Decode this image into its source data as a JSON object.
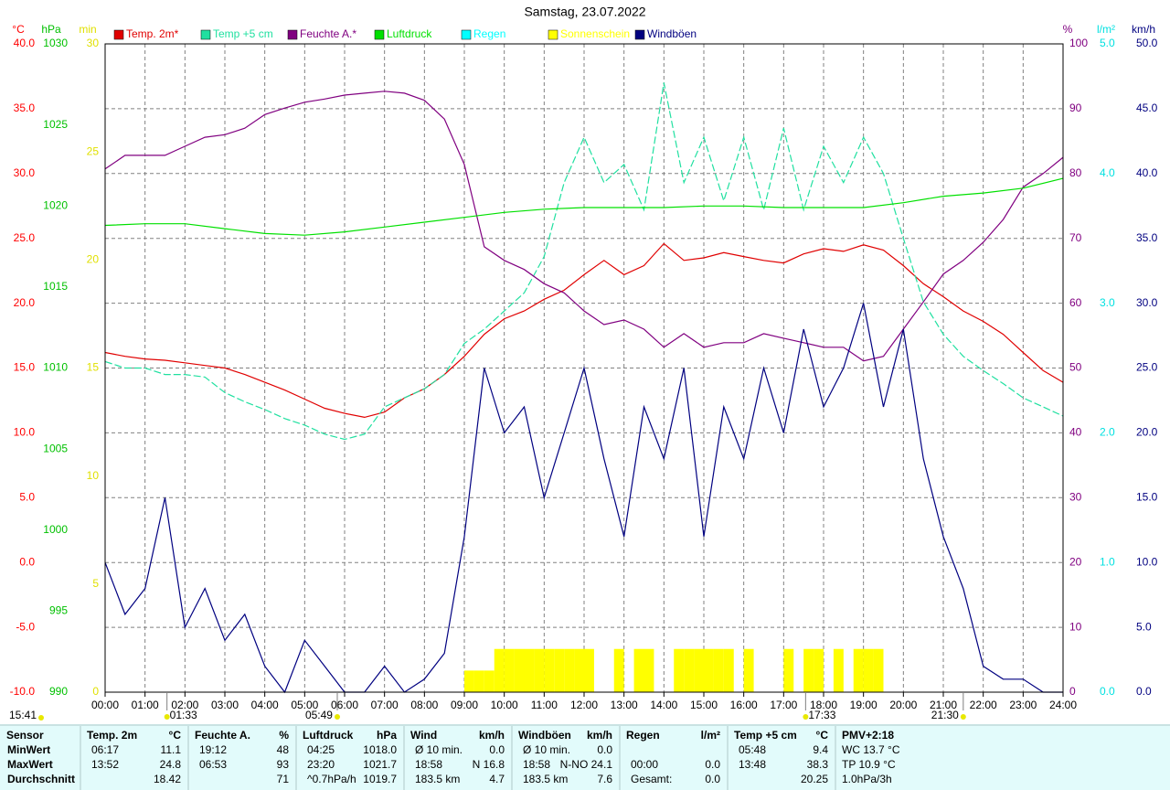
{
  "chart_data": {
    "type": "line",
    "title": "Samstag, 23.07.2022",
    "xlim": [
      0,
      24
    ],
    "xticks": [
      {
        "value": 0,
        "label": "00:00"
      },
      {
        "value": 1,
        "label": "01:00"
      },
      {
        "value": 2,
        "label": "02:00"
      },
      {
        "value": 3,
        "label": "03:00"
      },
      {
        "value": 4,
        "label": "04:00"
      },
      {
        "value": 5,
        "label": "05:00"
      },
      {
        "value": 6,
        "label": "06:00"
      },
      {
        "value": 7,
        "label": "07:00"
      },
      {
        "value": 8,
        "label": "08:00"
      },
      {
        "value": 9,
        "label": "09:00"
      },
      {
        "value": 10,
        "label": "10:00"
      },
      {
        "value": 11,
        "label": "11:00"
      },
      {
        "value": 12,
        "label": "12:00"
      },
      {
        "value": 13,
        "label": "13:00"
      },
      {
        "value": 14,
        "label": "14:00"
      },
      {
        "value": 15,
        "label": "15:00"
      },
      {
        "value": 16,
        "label": "16:00"
      },
      {
        "value": 17,
        "label": "17:00"
      },
      {
        "value": 18,
        "label": "18:00"
      },
      {
        "value": 19,
        "label": "19:00"
      },
      {
        "value": 20,
        "label": "20:00"
      },
      {
        "value": 21,
        "label": "21:00"
      },
      {
        "value": 22,
        "label": "22:00"
      },
      {
        "value": 23,
        "label": "23:00"
      },
      {
        "value": 24,
        "label": "24:00"
      }
    ],
    "grid": true,
    "axes": {
      "temp": {
        "unit": "°C",
        "color": "#ff0000",
        "lim": [
          -10,
          40
        ],
        "ticks": [
          {
            "value": -10,
            "label": "-10.0"
          },
          {
            "value": -5,
            "label": "-5.0"
          },
          {
            "value": 0,
            "label": "0.0"
          },
          {
            "value": 5,
            "label": "5.0"
          },
          {
            "value": 10,
            "label": "10.0"
          },
          {
            "value": 15,
            "label": "15.0"
          },
          {
            "value": 20,
            "label": "20.0"
          },
          {
            "value": 25,
            "label": "25.0"
          },
          {
            "value": 30,
            "label": "30.0"
          },
          {
            "value": 35,
            "label": "35.0"
          },
          {
            "value": 40,
            "label": "40.0"
          }
        ]
      },
      "hpa": {
        "unit": "hPa",
        "color": "#00c000",
        "lim": [
          990,
          1030
        ],
        "ticks": [
          990,
          995,
          1000,
          1005,
          1010,
          1015,
          1020,
          1025,
          1030
        ]
      },
      "min": {
        "unit": "min",
        "color": "#e0e000",
        "lim": [
          0,
          30
        ],
        "ticks": [
          0,
          5,
          10,
          15,
          20,
          25,
          30
        ]
      },
      "pct": {
        "unit": "%",
        "color": "#800080",
        "lim": [
          0,
          100
        ],
        "ticks": [
          0,
          10,
          20,
          30,
          40,
          50,
          60,
          70,
          80,
          90,
          100
        ]
      },
      "rain": {
        "unit": "l/m²",
        "color": "#00e0e0",
        "lim": [
          0,
          5
        ],
        "ticks": [
          {
            "value": 0,
            "label": "0.0"
          },
          {
            "value": 1,
            "label": "1.0"
          },
          {
            "value": 2,
            "label": "2.0"
          },
          {
            "value": 3,
            "label": "3.0"
          },
          {
            "value": 4,
            "label": "4.0"
          },
          {
            "value": 5,
            "label": "5.0"
          }
        ]
      },
      "kmh": {
        "unit": "km/h",
        "color": "#000080",
        "lim": [
          0,
          50
        ],
        "ticks": [
          {
            "value": 0,
            "label": "0.0"
          },
          {
            "value": 5,
            "label": "5.0"
          },
          {
            "value": 10,
            "label": "10.0"
          },
          {
            "value": 15,
            "label": "15.0"
          },
          {
            "value": 20,
            "label": "20.0"
          },
          {
            "value": 25,
            "label": "25.0"
          },
          {
            "value": 30,
            "label": "30.0"
          },
          {
            "value": 35,
            "label": "35.0"
          },
          {
            "value": 40,
            "label": "40.0"
          },
          {
            "value": 45,
            "label": "45.0"
          },
          {
            "value": 50,
            "label": "50.0"
          }
        ]
      }
    },
    "x": [
      0,
      0.5,
      1,
      1.5,
      2,
      2.5,
      3,
      3.5,
      4,
      4.5,
      5,
      5.5,
      6,
      6.5,
      7,
      7.5,
      8,
      8.5,
      9,
      9.5,
      10,
      10.5,
      11,
      11.5,
      12,
      12.5,
      13,
      13.5,
      14,
      14.5,
      15,
      15.5,
      16,
      16.5,
      17,
      17.5,
      18,
      18.5,
      19,
      19.5,
      20,
      20.5,
      21,
      21.5,
      22,
      22.5,
      23,
      23.5,
      24
    ],
    "series": [
      {
        "name": "Temp. 2m*",
        "color": "#e00000",
        "axis": "temp",
        "type": "line",
        "values": [
          16.2,
          15.9,
          15.7,
          15.6,
          15.4,
          15.2,
          15.0,
          14.5,
          13.9,
          13.3,
          12.6,
          11.9,
          11.5,
          11.2,
          11.6,
          12.7,
          13.4,
          14.5,
          15.9,
          17.6,
          18.8,
          19.4,
          20.3,
          21.0,
          22.2,
          23.3,
          22.2,
          22.9,
          24.6,
          23.3,
          23.5,
          23.9,
          23.6,
          23.3,
          23.1,
          23.8,
          24.2,
          24.0,
          24.5,
          24.1,
          22.9,
          21.5,
          20.5,
          19.4,
          18.6,
          17.6,
          16.2,
          14.8,
          13.9
        ]
      },
      {
        "name": "Temp +5 cm",
        "color": "#20e0a0",
        "axis": "temp",
        "type": "line",
        "dashed": true,
        "values": [
          15.5,
          15.0,
          15.0,
          14.5,
          14.5,
          14.3,
          13.1,
          12.4,
          11.8,
          11.1,
          10.6,
          9.9,
          9.5,
          9.9,
          12.0,
          12.7,
          13.4,
          14.5,
          16.9,
          18.0,
          19.4,
          20.8,
          23.6,
          29.3,
          32.8,
          29.3,
          30.7,
          27.2,
          37.0,
          29.3,
          32.8,
          27.9,
          32.8,
          27.2,
          33.5,
          27.2,
          32.1,
          29.3,
          32.8,
          30.0,
          25.0,
          20.1,
          17.6,
          15.9,
          14.8,
          13.8,
          12.7,
          12.0,
          11.3
        ]
      },
      {
        "name": "Feuchte A.*",
        "color": "#800080",
        "axis": "pct",
        "type": "line",
        "values": [
          80.7,
          82.8,
          82.8,
          82.8,
          84.2,
          85.6,
          86.0,
          87.0,
          89.1,
          90.1,
          91.0,
          91.5,
          92.1,
          92.4,
          92.7,
          92.4,
          91.3,
          88.4,
          81.4,
          68.7,
          66.6,
          65.2,
          63.0,
          61.6,
          58.8,
          56.7,
          57.4,
          56.0,
          53.2,
          55.3,
          53.2,
          53.9,
          53.9,
          55.3,
          54.6,
          53.9,
          53.2,
          53.2,
          51.1,
          51.8,
          56.0,
          60.2,
          64.5,
          66.6,
          69.4,
          72.9,
          77.9,
          80.0,
          82.5
        ]
      },
      {
        "name": "Luftdruck",
        "color": "#00e000",
        "axis": "hpa",
        "type": "line",
        "x": [
          0,
          1,
          2,
          3,
          4,
          5,
          6,
          7,
          8,
          9,
          10,
          11,
          12,
          13,
          14,
          15,
          16,
          17,
          18,
          19,
          20,
          21,
          22,
          23,
          24
        ],
        "values": [
          1018.8,
          1018.9,
          1018.9,
          1018.6,
          1018.3,
          1018.2,
          1018.4,
          1018.7,
          1019.0,
          1019.3,
          1019.6,
          1019.8,
          1019.9,
          1019.9,
          1019.9,
          1020.0,
          1020.0,
          1019.9,
          1019.9,
          1019.9,
          1020.2,
          1020.6,
          1020.8,
          1021.1,
          1021.7
        ]
      },
      {
        "name": "Regen",
        "color": "#00ffff",
        "axis": "rain",
        "type": "line"
      },
      {
        "name": "Sonnenschein",
        "color": "#ffff00",
        "axis": "min",
        "type": "bar",
        "x": [
          9,
          9.25,
          9.5,
          9.75,
          10,
          10.25,
          10.5,
          10.75,
          11,
          11.25,
          11.5,
          11.75,
          12,
          12.25,
          12.5,
          12.75,
          13,
          13.25,
          13.5,
          13.75,
          14,
          14.25,
          14.5,
          14.75,
          15,
          15.25,
          15.5,
          15.75,
          16,
          16.25,
          16.5,
          16.75,
          17,
          17.25,
          17.5,
          17.75,
          18,
          18.25,
          18.5,
          18.75,
          19,
          19.25
        ],
        "values": [
          1,
          1,
          1,
          2,
          2,
          2,
          2,
          2,
          2,
          2,
          2,
          2,
          2,
          0,
          0,
          2,
          0,
          2,
          2,
          0,
          0,
          2,
          2,
          2,
          2,
          2,
          2,
          0,
          2,
          0,
          0,
          0,
          2,
          0,
          2,
          2,
          0,
          2,
          0,
          2,
          2,
          2
        ]
      },
      {
        "name": "Windböen",
        "color": "#000080",
        "axis": "kmh",
        "type": "line",
        "values": [
          10,
          6,
          8,
          15,
          5,
          8,
          4,
          6,
          2,
          0,
          4,
          2,
          0,
          0,
          2,
          0,
          1,
          3,
          12,
          25,
          20,
          22,
          15,
          20,
          25,
          18,
          12,
          22,
          18,
          25,
          12,
          22,
          18,
          25,
          20,
          28,
          22,
          25,
          30,
          22,
          28,
          18,
          12,
          8,
          2,
          1,
          1,
          0,
          0
        ]
      }
    ],
    "timestamp": "15:41",
    "markers": [
      "01:33",
      "05:49",
      "17:33",
      "21:30"
    ]
  },
  "table": {
    "groups": [
      {
        "header": [
          "Sensor"
        ],
        "rows": [
          [
            "MinWert"
          ],
          [
            "MaxWert"
          ],
          [
            "Durchschnitt"
          ]
        ]
      },
      {
        "header": [
          "Temp. 2m",
          "°C"
        ],
        "rows": [
          [
            "06:17",
            "11.1"
          ],
          [
            "13:52",
            "24.8"
          ],
          [
            null,
            "18.42"
          ]
        ]
      },
      {
        "header": [
          "Feuchte A.",
          "%"
        ],
        "rows": [
          [
            "19:12",
            "48"
          ],
          [
            "06:53",
            "93"
          ],
          [
            null,
            "71"
          ]
        ]
      },
      {
        "header": [
          "Luftdruck",
          "hPa"
        ],
        "rows": [
          [
            "04:25",
            "1018.0"
          ],
          [
            "23:20",
            "1021.7"
          ],
          [
            "^0.7hPa/h",
            "1019.7"
          ]
        ]
      },
      {
        "header": [
          "Wind",
          "km/h"
        ],
        "rows": [
          [
            "Ø 10 min.",
            "0.0"
          ],
          [
            "18:58",
            "N 16.8"
          ],
          [
            "183.5 km",
            "4.7"
          ]
        ]
      },
      {
        "header": [
          "Windböen",
          "km/h"
        ],
        "rows": [
          [
            "Ø 10 min.",
            "0.0"
          ],
          [
            "18:58",
            "N-NO 24.1"
          ],
          [
            "183.5 km",
            "7.6"
          ]
        ]
      },
      {
        "header": [
          "Regen",
          "l/m²"
        ],
        "rows": [
          [
            null,
            null
          ],
          [
            "00:00",
            "0.0"
          ],
          [
            "Gesamt:",
            "0.0"
          ]
        ]
      },
      {
        "header": [
          "Temp +5 cm",
          "°C"
        ],
        "rows": [
          [
            "05:48",
            "9.4"
          ],
          [
            "13:48",
            "38.3"
          ],
          [
            null,
            "20.25"
          ]
        ]
      },
      {
        "header": [
          "PMV+2:18"
        ],
        "rows": [
          [
            "WC 13.7 °C"
          ],
          [
            "TP 10.9 °C"
          ],
          [
            "1.0hPa/3h"
          ]
        ]
      }
    ]
  }
}
